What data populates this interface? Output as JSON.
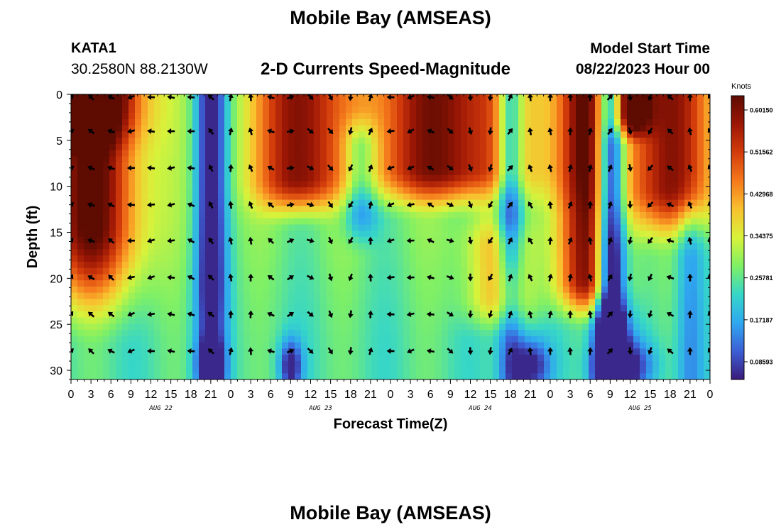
{
  "header": {
    "title": "Mobile Bay (AMSEAS)",
    "station": "KATA1",
    "coords": "30.2580N  88.2130W",
    "subtitle": "2-D Currents Speed-Magnitude",
    "model_start_label": "Model Start Time",
    "model_start_value": "08/22/2023 Hour 00"
  },
  "footer": {
    "title": "Mobile Bay (AMSEAS)"
  },
  "chart_data": {
    "type": "heatmap",
    "title": "2-D Currents Speed-Magnitude",
    "xlabel": "Forecast Time(Z)",
    "ylabel": "Depth (ft)",
    "x_tick_labels": [
      "0",
      "3",
      "6",
      "9",
      "12",
      "15",
      "18",
      "21",
      "0",
      "3",
      "6",
      "9",
      "12",
      "15",
      "18",
      "21",
      "0",
      "3",
      "6",
      "9",
      "12",
      "15",
      "18",
      "21",
      "0",
      "3",
      "6",
      "9",
      "12",
      "15",
      "18",
      "21",
      "0"
    ],
    "date_labels": [
      "AUG 22",
      "AUG 23",
      "AUG 24",
      "AUG 25"
    ],
    "xlim_hours": [
      0,
      96
    ],
    "y_ticks": [
      0,
      5,
      10,
      15,
      20,
      25,
      30
    ],
    "ylim": [
      0,
      31
    ],
    "y_inverted": true,
    "colorbar": {
      "label": "Knots",
      "ticks": [
        "0.60150",
        "0.51562",
        "0.42968",
        "0.34375",
        "0.25781",
        "0.17187",
        "0.08593"
      ],
      "colors": [
        "#3a1a7a",
        "#3c5fd6",
        "#2fa8f0",
        "#36d6c8",
        "#7ff065",
        "#d8f23a",
        "#f8c12f",
        "#f5791c",
        "#d33c0b",
        "#9c1705",
        "#5e0b02"
      ]
    },
    "arrow_depths_ft": [
      0,
      3.7,
      7.7,
      11.7,
      15.6,
      19.6,
      23.6,
      27.6
    ],
    "arrow_hours": [
      0,
      3,
      6,
      9,
      12,
      15,
      18,
      21,
      24,
      27,
      30,
      33,
      36,
      39,
      42,
      45,
      48,
      51,
      54,
      57,
      60,
      63,
      66,
      69,
      72,
      75,
      78,
      81,
      84,
      87,
      90,
      93,
      96
    ],
    "arrow_direction_deg_by_time": [
      45,
      300,
      300,
      260,
      265,
      270,
      285,
      320,
      0,
      350,
      300,
      70,
      120,
      150,
      200,
      10,
      260,
      255,
      290,
      120,
      170,
      200,
      30,
      340,
      0,
      10,
      0,
      30,
      180,
      210,
      300,
      350,
      340
    ]
  }
}
